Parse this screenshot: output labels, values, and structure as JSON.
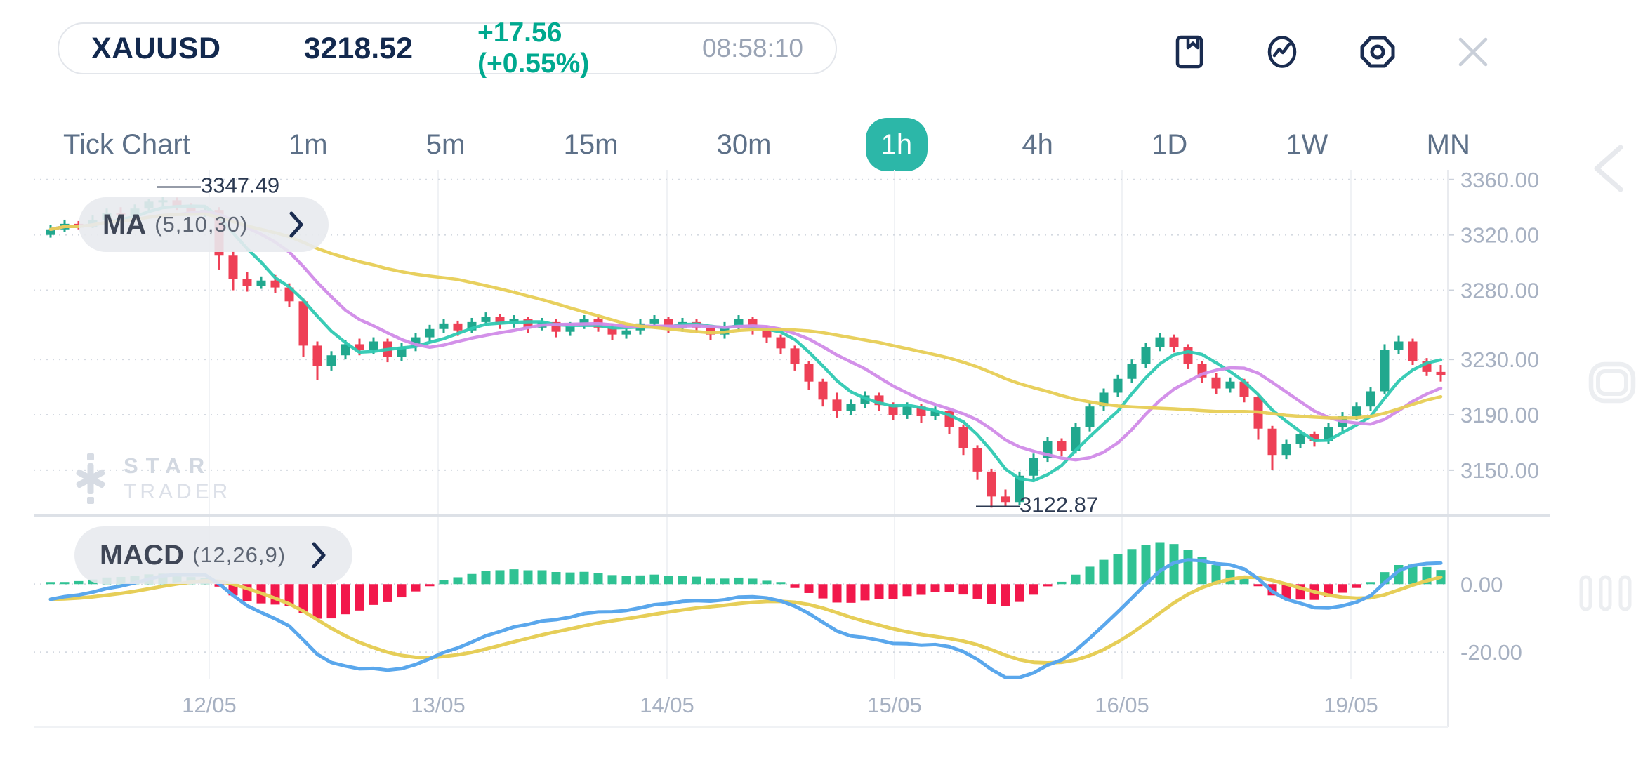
{
  "header": {
    "symbol": "XAUUSD",
    "price": "3218.52",
    "change": "+17.56 (+0.55%)",
    "time": "08:58:10",
    "icons": [
      "bookmark-icon",
      "pulse-circle-icon",
      "settings-hex-icon",
      "close-icon"
    ]
  },
  "timeframes": {
    "items": [
      {
        "label": "Tick Chart",
        "active": false
      },
      {
        "label": "1m",
        "active": false
      },
      {
        "label": "5m",
        "active": false
      },
      {
        "label": "15m",
        "active": false
      },
      {
        "label": "30m",
        "active": false
      },
      {
        "label": "1h",
        "active": true
      },
      {
        "label": "4h",
        "active": false
      },
      {
        "label": "1D",
        "active": false
      },
      {
        "label": "1W",
        "active": false
      },
      {
        "label": "MN",
        "active": false
      }
    ]
  },
  "watermark": {
    "line1": "STAR",
    "line2": "TRADER"
  },
  "side_controls": [
    "chevron-left-icon",
    "screen-frame-icon",
    "grip-bars-icon"
  ],
  "colors": {
    "accent": "#2CB7A8",
    "navy": "#13294E",
    "change_green": "#00A98F",
    "axis_text": "#A7B1C2",
    "grid": "#F0F2F5",
    "grid_dot": "#D4D9E1",
    "separator": "#DDE1E7"
  },
  "chart_data": {
    "type": "candlestick_with_macd",
    "title": "XAUUSD 1h",
    "x_axis": {
      "tick_labels": [
        "12/05",
        "13/05",
        "14/05",
        "15/05",
        "16/05",
        "19/05"
      ],
      "tick_indices": [
        11.3,
        27.6,
        43.9,
        60.1,
        76.3,
        92.6
      ]
    },
    "y_axis_main": {
      "ylim": [
        3118,
        3368
      ],
      "ticks": [
        {
          "v": 3360,
          "label": "3360.00"
        },
        {
          "v": 3320,
          "label": "3320.00"
        },
        {
          "v": 3280,
          "label": "3280.00"
        },
        {
          "v": 3230,
          "label": "3230.00"
        },
        {
          "v": 3190,
          "label": "3190.00"
        },
        {
          "v": 3150,
          "label": "3150.00"
        }
      ]
    },
    "annotations": {
      "high": {
        "index": 8,
        "label": "3347.49"
      },
      "low": {
        "index": 67,
        "label": "3122.87"
      }
    },
    "candle_colors": {
      "up": "#21A88E",
      "down": "#EE4056"
    },
    "candles": [
      [
        3320,
        3327,
        3318,
        3324
      ],
      [
        3324,
        3331,
        3322,
        3328
      ],
      [
        3328,
        3330,
        3324,
        3326
      ],
      [
        3326,
        3334,
        3325,
        3331
      ],
      [
        3331,
        3339,
        3329,
        3336
      ],
      [
        3336,
        3340,
        3331,
        3334
      ],
      [
        3334,
        3342,
        3332,
        3339
      ],
      [
        3339,
        3346,
        3337,
        3344
      ],
      [
        3344,
        3347.5,
        3341,
        3345
      ],
      [
        3345,
        3347,
        3338,
        3340
      ],
      [
        3340,
        3343,
        3334,
        3336
      ],
      [
        3336,
        3341,
        3333,
        3338
      ],
      [
        3338,
        3340,
        3295,
        3305
      ],
      [
        3305,
        3308,
        3280,
        3288
      ],
      [
        3288,
        3293,
        3279,
        3283
      ],
      [
        3283,
        3290,
        3281,
        3287
      ],
      [
        3287,
        3291,
        3278,
        3282
      ],
      [
        3282,
        3285,
        3268,
        3272
      ],
      [
        3272,
        3274,
        3232,
        3240
      ],
      [
        3240,
        3243,
        3215,
        3225
      ],
      [
        3225,
        3236,
        3222,
        3233
      ],
      [
        3233,
        3244,
        3230,
        3241
      ],
      [
        3241,
        3245,
        3233,
        3237
      ],
      [
        3237,
        3246,
        3234,
        3243
      ],
      [
        3243,
        3245,
        3228,
        3232
      ],
      [
        3232,
        3242,
        3229,
        3239
      ],
      [
        3239,
        3249,
        3236,
        3246
      ],
      [
        3246,
        3255,
        3243,
        3252
      ],
      [
        3252,
        3259,
        3249,
        3256
      ],
      [
        3256,
        3258,
        3247,
        3251
      ],
      [
        3251,
        3260,
        3249,
        3257
      ],
      [
        3257,
        3264,
        3254,
        3261
      ],
      [
        3261,
        3263,
        3252,
        3256
      ],
      [
        3256,
        3262,
        3253,
        3259
      ],
      [
        3259,
        3261,
        3249,
        3253
      ],
      [
        3253,
        3260,
        3251,
        3257
      ],
      [
        3257,
        3259,
        3246,
        3250
      ],
      [
        3250,
        3257,
        3247,
        3254
      ],
      [
        3254,
        3262,
        3252,
        3259
      ],
      [
        3259,
        3261,
        3250,
        3253
      ],
      [
        3253,
        3256,
        3244,
        3248
      ],
      [
        3248,
        3254,
        3245,
        3251
      ],
      [
        3251,
        3259,
        3248,
        3256
      ],
      [
        3256,
        3262,
        3253,
        3259
      ],
      [
        3259,
        3261,
        3249,
        3253
      ],
      [
        3253,
        3260,
        3250,
        3257
      ],
      [
        3257,
        3259,
        3249,
        3253
      ],
      [
        3253,
        3255,
        3244,
        3248
      ],
      [
        3248,
        3257,
        3245,
        3254
      ],
      [
        3254,
        3262,
        3251,
        3259
      ],
      [
        3259,
        3261,
        3248,
        3252
      ],
      [
        3252,
        3254,
        3242,
        3246
      ],
      [
        3246,
        3248,
        3234,
        3238
      ],
      [
        3238,
        3240,
        3222,
        3227
      ],
      [
        3227,
        3229,
        3208,
        3214
      ],
      [
        3214,
        3216,
        3196,
        3201
      ],
      [
        3201,
        3206,
        3188,
        3193
      ],
      [
        3193,
        3201,
        3190,
        3198
      ],
      [
        3198,
        3207,
        3195,
        3204
      ],
      [
        3204,
        3206,
        3193,
        3197
      ],
      [
        3197,
        3199,
        3186,
        3190
      ],
      [
        3190,
        3199,
        3187,
        3196
      ],
      [
        3196,
        3198,
        3184,
        3189
      ],
      [
        3189,
        3196,
        3186,
        3193
      ],
      [
        3193,
        3195,
        3176,
        3181
      ],
      [
        3181,
        3183,
        3161,
        3166
      ],
      [
        3166,
        3168,
        3143,
        3149
      ],
      [
        3149,
        3151,
        3122.9,
        3131
      ],
      [
        3131,
        3136,
        3124,
        3127
      ],
      [
        3127,
        3149,
        3125,
        3146
      ],
      [
        3146,
        3162,
        3143,
        3159
      ],
      [
        3159,
        3174,
        3156,
        3171
      ],
      [
        3171,
        3173,
        3160,
        3164
      ],
      [
        3164,
        3184,
        3162,
        3181
      ],
      [
        3181,
        3199,
        3178,
        3196
      ],
      [
        3196,
        3209,
        3193,
        3206
      ],
      [
        3206,
        3219,
        3203,
        3216
      ],
      [
        3216,
        3230,
        3213,
        3227
      ],
      [
        3227,
        3242,
        3224,
        3239
      ],
      [
        3239,
        3249,
        3236,
        3246
      ],
      [
        3246,
        3248,
        3235,
        3239
      ],
      [
        3239,
        3241,
        3223,
        3227
      ],
      [
        3227,
        3229,
        3213,
        3217
      ],
      [
        3217,
        3220,
        3205,
        3209
      ],
      [
        3209,
        3217,
        3206,
        3214
      ],
      [
        3214,
        3216,
        3199,
        3203
      ],
      [
        3203,
        3205,
        3172,
        3180
      ],
      [
        3180,
        3182,
        3150,
        3161
      ],
      [
        3161,
        3172,
        3158,
        3169
      ],
      [
        3169,
        3179,
        3166,
        3176
      ],
      [
        3176,
        3178,
        3167,
        3171
      ],
      [
        3171,
        3184,
        3169,
        3181
      ],
      [
        3181,
        3192,
        3178,
        3189
      ],
      [
        3189,
        3199,
        3186,
        3196
      ],
      [
        3196,
        3210,
        3193,
        3207
      ],
      [
        3207,
        3241,
        3205,
        3237
      ],
      [
        3237,
        3247,
        3234,
        3243
      ],
      [
        3243,
        3245,
        3226,
        3229
      ],
      [
        3229,
        3231,
        3218,
        3221
      ],
      [
        3221,
        3226,
        3214,
        3218.5
      ]
    ],
    "indicators": {
      "ma": {
        "label": "MA",
        "params_label": "(5,10,30)",
        "periods": [
          5,
          10,
          30
        ],
        "colors": [
          "#2FC9B2",
          "#D18BE8",
          "#E7CE55"
        ]
      },
      "macd": {
        "label": "MACD",
        "params_label": "(12,26,9)",
        "fast": 12,
        "slow": 26,
        "signal": 9,
        "ylim": [
          18,
          -28
        ],
        "ticks": [
          {
            "v": 0,
            "label": "0.00"
          },
          {
            "v": -20,
            "label": "-20.00"
          }
        ],
        "colors": {
          "line": "#5AA7EC",
          "signal": "#E6CE58",
          "hist_up": "#2FC293",
          "hist_down": "#F2184B"
        }
      }
    }
  }
}
